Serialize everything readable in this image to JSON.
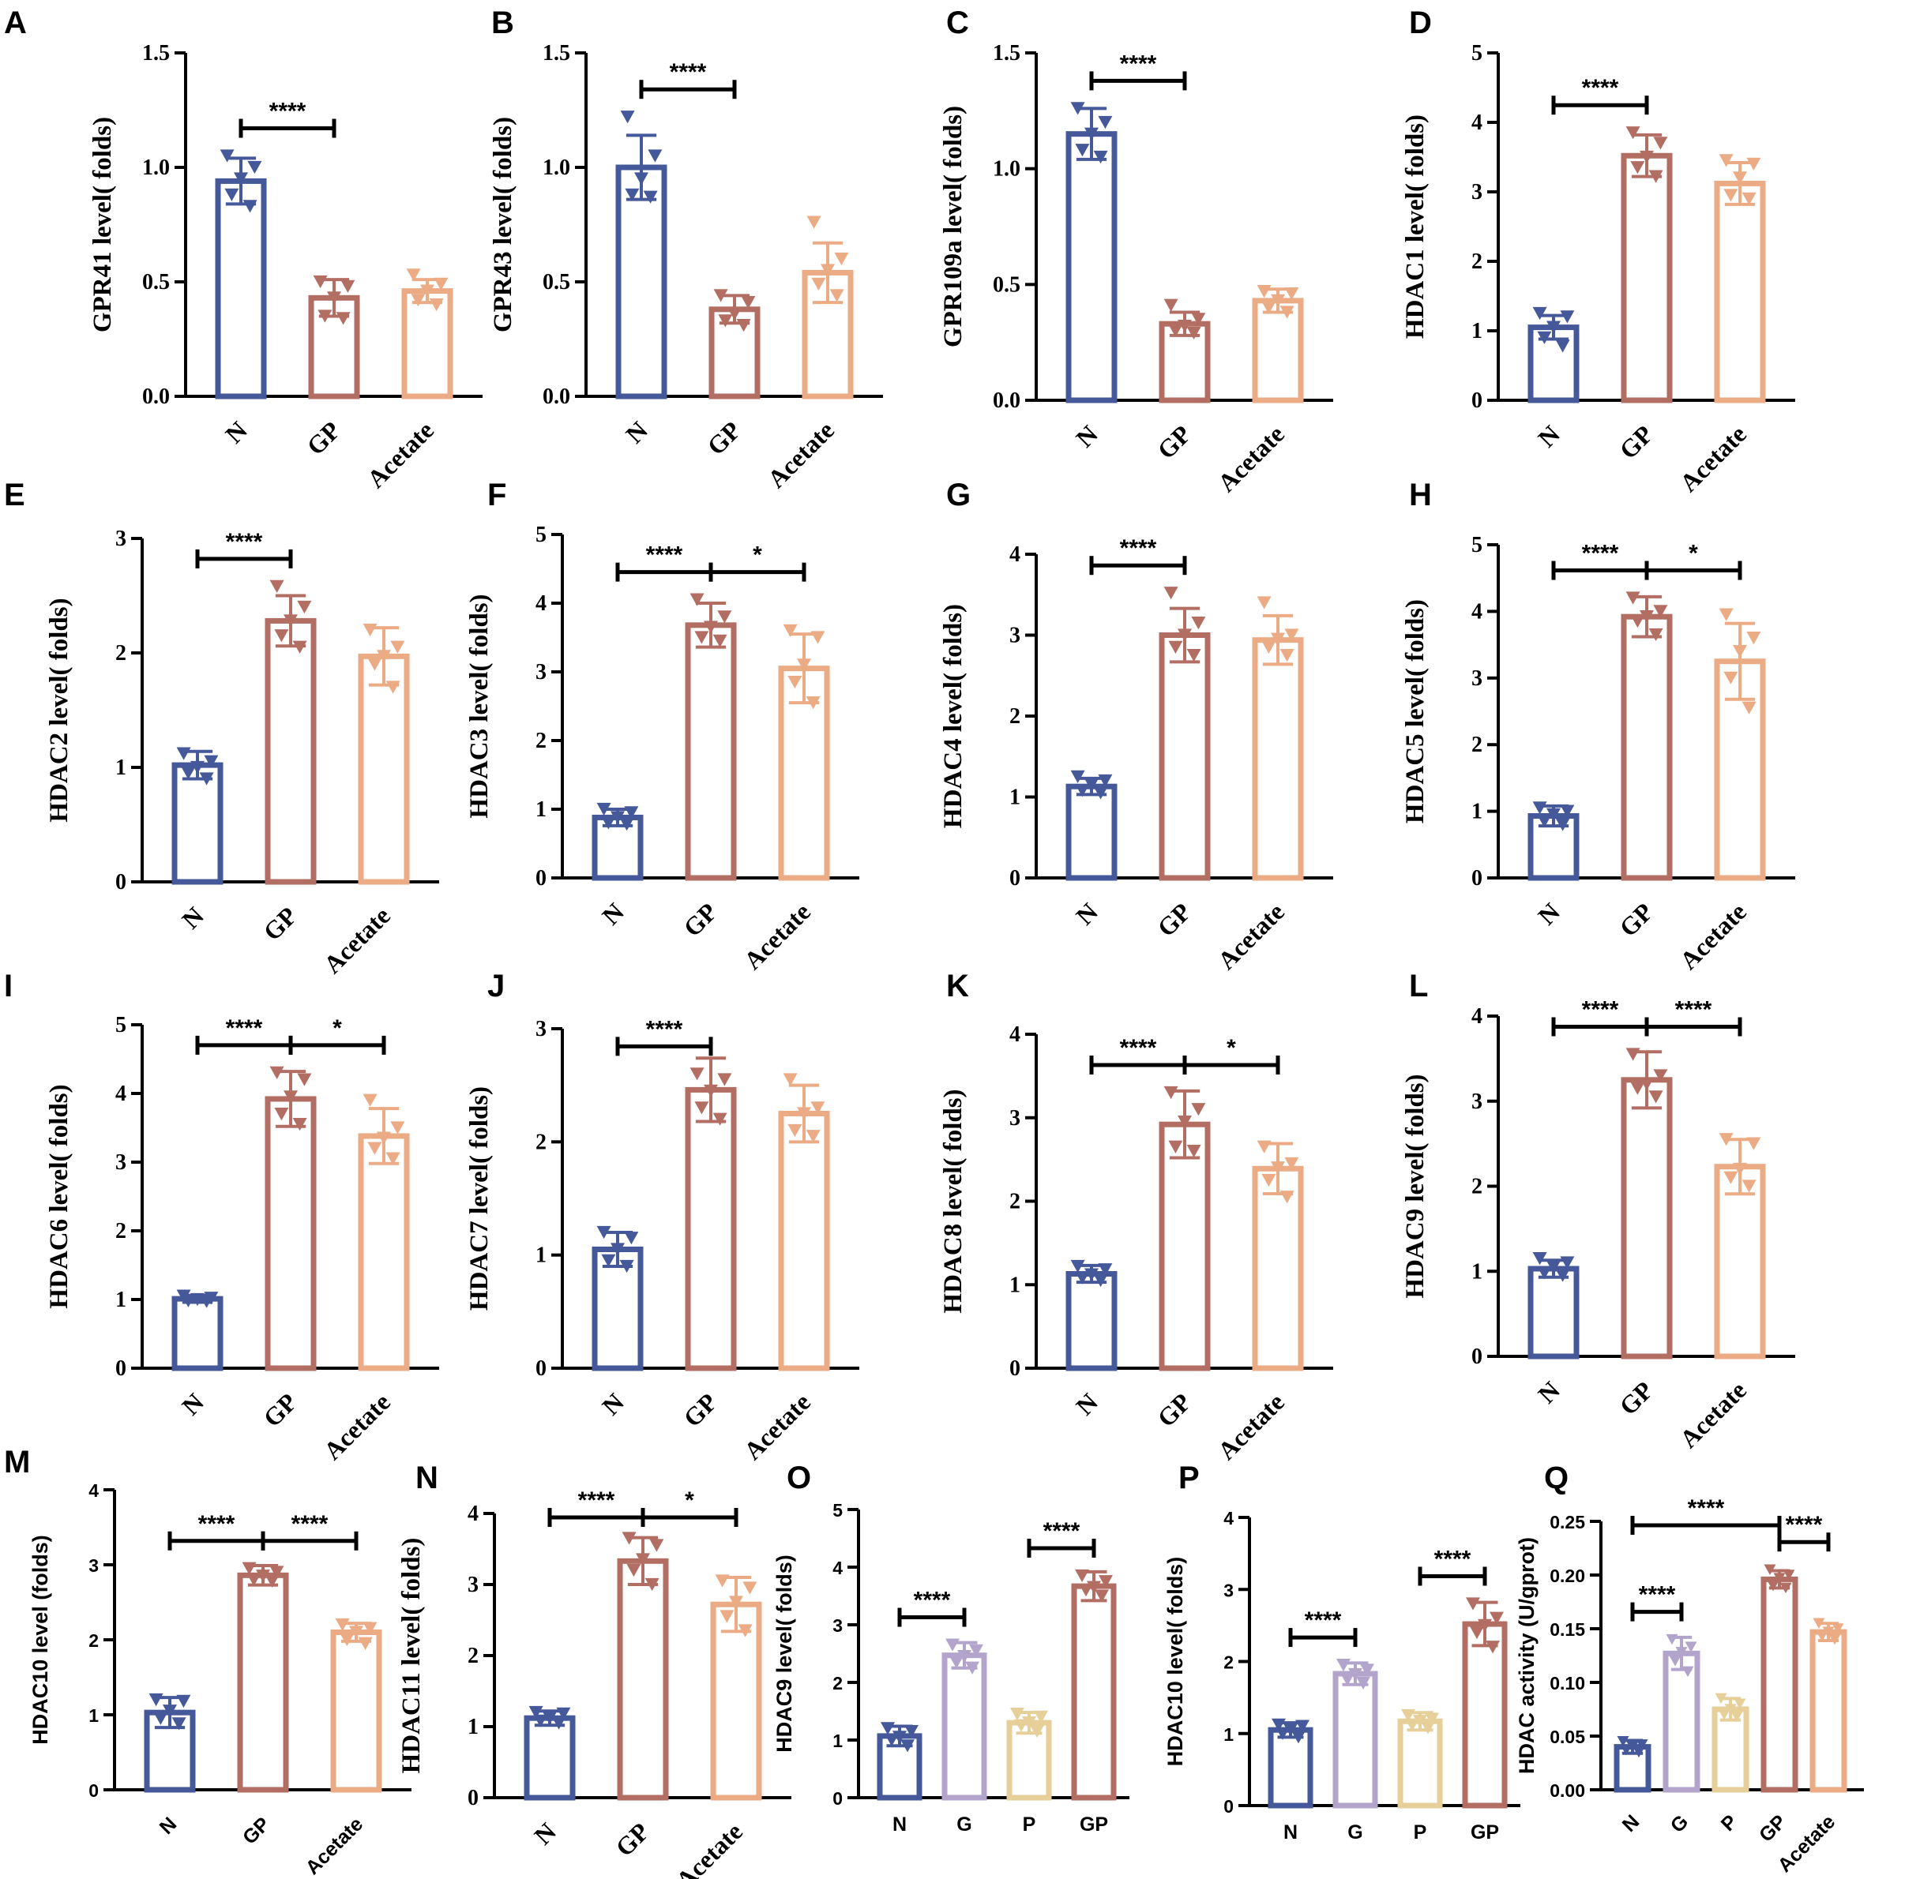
{
  "chart_data": [
    {
      "panel": "A",
      "type": "bar",
      "ylabel": "GPR41 level( folds)",
      "ylim": [
        0,
        1.5
      ],
      "yticks": [
        "0.0",
        "0.5",
        "1.0",
        "1.5"
      ],
      "categories": [
        "N",
        "GP",
        "Acetate"
      ],
      "colors": [
        "#44589a",
        "#b36e64",
        "#ebab84"
      ],
      "values": [
        0.94,
        0.43,
        0.46
      ],
      "errors": [
        0.1,
        0.08,
        0.05
      ],
      "points": [
        [
          1.05,
          1.0,
          0.95,
          0.88,
          0.83
        ],
        [
          0.5,
          0.48,
          0.43,
          0.35,
          0.34
        ],
        [
          0.53,
          0.49,
          0.46,
          0.42,
          0.4
        ]
      ],
      "significance": [
        {
          "from": 0,
          "to": 1,
          "text": "****"
        }
      ]
    },
    {
      "panel": "B",
      "type": "bar",
      "ylabel": "GPR43 level( folds)",
      "ylim": [
        0,
        1.5
      ],
      "yticks": [
        "0.0",
        "0.5",
        "1.0",
        "1.5"
      ],
      "categories": [
        "N",
        "GP",
        "Acetate"
      ],
      "colors": [
        "#44589a",
        "#b36e64",
        "#ebab84"
      ],
      "values": [
        1.0,
        0.38,
        0.54
      ],
      "errors": [
        0.14,
        0.06,
        0.13
      ],
      "points": [
        [
          1.22,
          1.05,
          0.95,
          0.88,
          0.87
        ],
        [
          0.44,
          0.41,
          0.36,
          0.33,
          0.31
        ],
        [
          0.76,
          0.6,
          0.55,
          0.49,
          0.44
        ]
      ],
      "significance": [
        {
          "from": 0,
          "to": 1,
          "text": "****"
        }
      ]
    },
    {
      "panel": "C",
      "type": "bar",
      "ylabel": "GPR109a level( folds)",
      "ylim": [
        0,
        1.5
      ],
      "yticks": [
        "0.0",
        "0.5",
        "1.0",
        "1.5"
      ],
      "categories": [
        "N",
        "GP",
        "Acetate"
      ],
      "colors": [
        "#44589a",
        "#b36e64",
        "#ebab84"
      ],
      "values": [
        1.15,
        0.33,
        0.43
      ],
      "errors": [
        0.11,
        0.05,
        0.05
      ],
      "points": [
        [
          1.26,
          1.2,
          1.15,
          1.08,
          1.05
        ],
        [
          0.41,
          0.35,
          0.32,
          0.3,
          0.29
        ],
        [
          0.47,
          0.46,
          0.43,
          0.4,
          0.38
        ]
      ],
      "significance": [
        {
          "from": 0,
          "to": 1,
          "text": "****"
        }
      ]
    },
    {
      "panel": "D",
      "type": "bar",
      "ylabel": "HDAC1 level( folds)",
      "ylim": [
        0,
        5
      ],
      "yticks": [
        "0",
        "1",
        "2",
        "3",
        "4",
        "5"
      ],
      "categories": [
        "N",
        "GP",
        "Acetate"
      ],
      "colors": [
        "#44589a",
        "#b36e64",
        "#ebab84"
      ],
      "values": [
        1.05,
        3.52,
        3.12
      ],
      "errors": [
        0.17,
        0.3,
        0.3
      ],
      "points": [
        [
          1.25,
          1.2,
          1.05,
          0.9,
          0.78
        ],
        [
          3.85,
          3.7,
          3.5,
          3.35,
          3.22
        ],
        [
          3.45,
          3.4,
          3.2,
          2.95,
          2.9
        ]
      ],
      "significance": [
        {
          "from": 0,
          "to": 1,
          "text": "****"
        }
      ]
    },
    {
      "panel": "E",
      "type": "bar",
      "ylabel": "HDAC2 level( folds)",
      "ylim": [
        0,
        3
      ],
      "yticks": [
        "0",
        "1",
        "2",
        "3"
      ],
      "categories": [
        "N",
        "GP",
        "Acetate"
      ],
      "colors": [
        "#44589a",
        "#b36e64",
        "#ebab84"
      ],
      "values": [
        1.02,
        2.28,
        1.97
      ],
      "errors": [
        0.12,
        0.22,
        0.25
      ],
      "points": [
        [
          1.12,
          1.05,
          1.0,
          0.95,
          0.9
        ],
        [
          2.58,
          2.4,
          2.28,
          2.15,
          2.05
        ],
        [
          2.2,
          2.05,
          1.97,
          1.9,
          1.7
        ]
      ],
      "significance": [
        {
          "from": 0,
          "to": 1,
          "text": "****"
        }
      ]
    },
    {
      "panel": "F",
      "type": "bar",
      "ylabel": "HDAC3 level( folds)",
      "ylim": [
        0,
        5
      ],
      "yticks": [
        "0",
        "1",
        "2",
        "3",
        "4",
        "5"
      ],
      "categories": [
        "N",
        "GP",
        "Acetate"
      ],
      "colors": [
        "#44589a",
        "#b36e64",
        "#ebab84"
      ],
      "values": [
        0.88,
        3.68,
        3.05
      ],
      "errors": [
        0.12,
        0.32,
        0.5
      ],
      "points": [
        [
          1.0,
          0.95,
          0.88,
          0.8,
          0.78
        ],
        [
          4.05,
          3.8,
          3.65,
          3.5,
          3.45
        ],
        [
          3.6,
          3.5,
          3.1,
          2.85,
          2.55
        ]
      ],
      "significance": [
        {
          "from": 0,
          "to": 1,
          "text": "****"
        },
        {
          "from": 1,
          "to": 2,
          "text": "*"
        }
      ]
    },
    {
      "panel": "G",
      "type": "bar",
      "ylabel": "HDAC4 level( folds)",
      "ylim": [
        0,
        4
      ],
      "yticks": [
        "0",
        "1",
        "2",
        "3",
        "4"
      ],
      "categories": [
        "N",
        "GP",
        "Acetate"
      ],
      "colors": [
        "#44589a",
        "#b36e64",
        "#ebab84"
      ],
      "values": [
        1.13,
        3.0,
        2.94
      ],
      "errors": [
        0.1,
        0.33,
        0.3
      ],
      "points": [
        [
          1.25,
          1.2,
          1.15,
          1.08,
          1.05
        ],
        [
          3.52,
          3.15,
          3.0,
          2.85,
          2.75
        ],
        [
          3.4,
          3.0,
          2.95,
          2.85,
          2.75
        ]
      ],
      "significance": [
        {
          "from": 0,
          "to": 1,
          "text": "****"
        }
      ]
    },
    {
      "panel": "H",
      "type": "bar",
      "ylabel": "HDAC5 level( folds)",
      "ylim": [
        0,
        5
      ],
      "yticks": [
        "0",
        "1",
        "2",
        "3",
        "4",
        "5"
      ],
      "categories": [
        "N",
        "GP",
        "Acetate"
      ],
      "colors": [
        "#44589a",
        "#b36e64",
        "#ebab84"
      ],
      "values": [
        0.93,
        3.92,
        3.25
      ],
      "errors": [
        0.15,
        0.3,
        0.57
      ],
      "points": [
        [
          1.05,
          1.0,
          0.95,
          0.85,
          0.8
        ],
        [
          4.2,
          4.0,
          3.92,
          3.85,
          3.65
        ],
        [
          3.95,
          3.6,
          3.4,
          3.0,
          2.55
        ]
      ],
      "significance": [
        {
          "from": 0,
          "to": 1,
          "text": "****"
        },
        {
          "from": 1,
          "to": 2,
          "text": "*"
        }
      ]
    },
    {
      "panel": "I",
      "type": "bar",
      "ylabel": "HDAC6 level( folds)",
      "ylim": [
        0,
        5
      ],
      "yticks": [
        "0",
        "1",
        "2",
        "3",
        "4",
        "5"
      ],
      "categories": [
        "N",
        "GP",
        "Acetate"
      ],
      "colors": [
        "#44589a",
        "#b36e64",
        "#ebab84"
      ],
      "values": [
        1.01,
        3.92,
        3.38
      ],
      "errors": [
        0.05,
        0.4,
        0.4
      ],
      "points": [
        [
          1.05,
          1.02,
          1.0,
          0.98,
          0.97
        ],
        [
          4.3,
          4.2,
          3.95,
          3.7,
          3.55
        ],
        [
          3.9,
          3.5,
          3.35,
          3.2,
          3.05
        ]
      ],
      "significance": [
        {
          "from": 0,
          "to": 1,
          "text": "****"
        },
        {
          "from": 1,
          "to": 2,
          "text": "*"
        }
      ]
    },
    {
      "panel": "J",
      "type": "bar",
      "ylabel": "HDAC7 level( folds)",
      "ylim": [
        0,
        3
      ],
      "yticks": [
        "0",
        "1",
        "2",
        "3"
      ],
      "categories": [
        "N",
        "GP",
        "Acetate"
      ],
      "colors": [
        "#44589a",
        "#b36e64",
        "#ebab84"
      ],
      "values": [
        1.05,
        2.46,
        2.25
      ],
      "errors": [
        0.15,
        0.28,
        0.25
      ],
      "points": [
        [
          1.2,
          1.15,
          1.05,
          0.95,
          0.9
        ],
        [
          2.6,
          2.55,
          2.45,
          2.3,
          2.2
        ],
        [
          2.55,
          2.3,
          2.25,
          2.1,
          2.05
        ]
      ],
      "significance": [
        {
          "from": 0,
          "to": 1,
          "text": "****"
        }
      ]
    },
    {
      "panel": "K",
      "type": "bar",
      "ylabel": "HDAC8 level( folds)",
      "ylim": [
        0,
        4
      ],
      "yticks": [
        "0",
        "1",
        "2",
        "3",
        "4"
      ],
      "categories": [
        "N",
        "GP",
        "Acetate"
      ],
      "colors": [
        "#44589a",
        "#b36e64",
        "#ebab84"
      ],
      "values": [
        1.13,
        2.92,
        2.39
      ],
      "errors": [
        0.1,
        0.4,
        0.3
      ],
      "points": [
        [
          1.22,
          1.18,
          1.12,
          1.08,
          1.05
        ],
        [
          3.3,
          3.1,
          2.95,
          2.65,
          2.6
        ],
        [
          2.65,
          2.45,
          2.4,
          2.25,
          2.05
        ]
      ],
      "significance": [
        {
          "from": 0,
          "to": 1,
          "text": "****"
        },
        {
          "from": 1,
          "to": 2,
          "text": "*"
        }
      ]
    },
    {
      "panel": "L",
      "type": "bar",
      "ylabel": "HDAC9 level( folds)",
      "ylim": [
        0,
        4
      ],
      "yticks": [
        "0",
        "1",
        "2",
        "3",
        "4"
      ],
      "categories": [
        "N",
        "GP",
        "Acetate"
      ],
      "colors": [
        "#44589a",
        "#b36e64",
        "#ebab84"
      ],
      "values": [
        1.03,
        3.25,
        2.23
      ],
      "errors": [
        0.1,
        0.33,
        0.32
      ],
      "points": [
        [
          1.15,
          1.1,
          1.05,
          0.98,
          0.95
        ],
        [
          3.55,
          3.3,
          3.2,
          3.15,
          3.05
        ],
        [
          2.55,
          2.5,
          2.2,
          2.1,
          2.0
        ]
      ],
      "significance": [
        {
          "from": 0,
          "to": 1,
          "text": "****"
        },
        {
          "from": 1,
          "to": 2,
          "text": "****"
        }
      ]
    },
    {
      "panel": "M",
      "type": "bar",
      "style": "sans",
      "ylabel": "HDAC10 level (folds)",
      "ylim": [
        0,
        4
      ],
      "yticks": [
        "0",
        "1",
        "2",
        "3",
        "4"
      ],
      "categories": [
        "N",
        "GP",
        "Acetate"
      ],
      "colors": [
        "#44589a",
        "#b36e64",
        "#ebab84"
      ],
      "values": [
        1.03,
        2.86,
        2.1
      ],
      "errors": [
        0.2,
        0.13,
        0.12
      ],
      "points": [
        [
          1.2,
          1.18,
          1.05,
          0.95,
          0.88
        ],
        [
          2.95,
          2.9,
          2.85,
          2.8,
          2.78
        ],
        [
          2.2,
          2.15,
          2.1,
          2.0,
          1.95
        ]
      ],
      "significance": [
        {
          "from": 0,
          "to": 1,
          "text": "****"
        },
        {
          "from": 1,
          "to": 2,
          "text": "****"
        }
      ]
    },
    {
      "panel": "N",
      "type": "bar",
      "ylabel": "HDAC11 level( folds)",
      "ylim": [
        0,
        4
      ],
      "yticks": [
        "0",
        "1",
        "2",
        "3",
        "4"
      ],
      "categories": [
        "N",
        "GP",
        "Acetate"
      ],
      "colors": [
        "#44589a",
        "#b36e64",
        "#ebab84"
      ],
      "values": [
        1.12,
        3.33,
        2.72
      ],
      "errors": [
        0.1,
        0.33,
        0.38
      ],
      "points": [
        [
          1.2,
          1.18,
          1.12,
          1.08,
          1.05
        ],
        [
          3.65,
          3.55,
          3.35,
          3.2,
          3.0
        ],
        [
          3.05,
          2.95,
          2.75,
          2.55,
          2.35
        ]
      ],
      "significance": [
        {
          "from": 0,
          "to": 1,
          "text": "****"
        },
        {
          "from": 1,
          "to": 2,
          "text": "*"
        }
      ]
    },
    {
      "panel": "O",
      "type": "bar",
      "style": "sans",
      "ylabel": "HDAC9 level( folds)",
      "ylim": [
        0,
        5
      ],
      "yticks": [
        "0",
        "1",
        "2",
        "3",
        "4",
        "5"
      ],
      "categories": [
        "N",
        "G",
        "P",
        "GP"
      ],
      "colors": [
        "#44589a",
        "#b3a4cc",
        "#e6cf98",
        "#b36e64"
      ],
      "values": [
        1.07,
        2.47,
        1.3,
        3.67
      ],
      "errors": [
        0.17,
        0.22,
        0.18,
        0.25
      ],
      "points": [
        [
          1.2,
          1.15,
          1.05,
          1.0,
          0.9
        ],
        [
          2.65,
          2.55,
          2.45,
          2.35,
          2.25
        ],
        [
          1.45,
          1.4,
          1.3,
          1.25,
          1.15
        ],
        [
          3.85,
          3.75,
          3.65,
          3.6,
          3.5
        ]
      ],
      "significance": [
        {
          "from": 0,
          "to": 1,
          "text": "****"
        },
        {
          "from": 2,
          "to": 3,
          "text": "****"
        }
      ]
    },
    {
      "panel": "P",
      "type": "bar",
      "style": "sans",
      "ylabel": "HDAC10 level( folds)",
      "ylim": [
        0,
        4
      ],
      "yticks": [
        "0",
        "1",
        "2",
        "3",
        "4"
      ],
      "categories": [
        "N",
        "G",
        "P",
        "GP"
      ],
      "colors": [
        "#44589a",
        "#b3a4cc",
        "#e6cf98",
        "#b36e64"
      ],
      "values": [
        1.05,
        1.83,
        1.17,
        2.52
      ],
      "errors": [
        0.1,
        0.15,
        0.12,
        0.3
      ],
      "points": [
        [
          1.12,
          1.1,
          1.05,
          1.0,
          0.95
        ],
        [
          1.95,
          1.88,
          1.82,
          1.75,
          1.7
        ],
        [
          1.25,
          1.2,
          1.17,
          1.12,
          1.08
        ],
        [
          2.8,
          2.6,
          2.5,
          2.4,
          2.2
        ]
      ],
      "significance": [
        {
          "from": 0,
          "to": 1,
          "text": "****"
        },
        {
          "from": 2,
          "to": 3,
          "text": "****"
        }
      ]
    },
    {
      "panel": "Q",
      "type": "bar",
      "style": "sans",
      "ylabel": "HDAC activity (U/gprot)",
      "ylim": [
        0,
        0.25
      ],
      "yticks": [
        "0.00",
        "0.05",
        "0.10",
        "0.15",
        "0.20",
        "0.25"
      ],
      "categories": [
        "N",
        "G",
        "P",
        "GP",
        "Acetate"
      ],
      "colors": [
        "#44589a",
        "#b3a4cc",
        "#e6cf98",
        "#b36e64",
        "#ebab84"
      ],
      "values": [
        0.04,
        0.127,
        0.075,
        0.196,
        0.147
      ],
      "errors": [
        0.006,
        0.015,
        0.01,
        0.008,
        0.008
      ],
      "points": [
        [
          0.045,
          0.042,
          0.04,
          0.037,
          0.035
        ],
        [
          0.14,
          0.133,
          0.128,
          0.12,
          0.11
        ],
        [
          0.085,
          0.08,
          0.075,
          0.07,
          0.068
        ],
        [
          0.205,
          0.2,
          0.197,
          0.19,
          0.188
        ],
        [
          0.155,
          0.15,
          0.147,
          0.143,
          0.14
        ]
      ],
      "significance": [
        {
          "from": 0,
          "to": 1,
          "text": "****"
        },
        {
          "from": 0,
          "to": 3,
          "text": "****"
        },
        {
          "from": 3,
          "to": 4,
          "text": "****"
        }
      ]
    }
  ]
}
